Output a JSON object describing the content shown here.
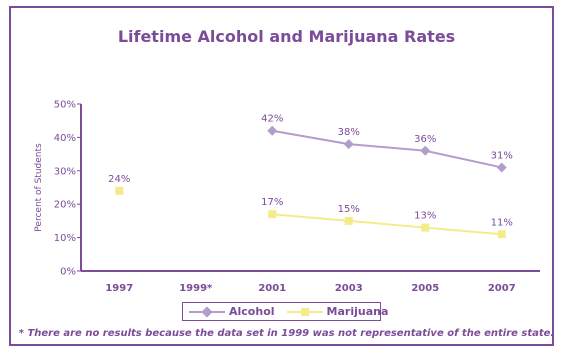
{
  "chart_data": {
    "type": "line",
    "title": "Lifetime Alcohol and Marijuana Rates",
    "ylabel": "Percent of Students",
    "xlabel": "",
    "categories": [
      "1997",
      "1999*",
      "2001",
      "2003",
      "2005",
      "2007"
    ],
    "ylim": [
      0,
      50
    ],
    "yticks": [
      "0%",
      "10%",
      "20%",
      "30%",
      "40%",
      "50%"
    ],
    "grid": false,
    "legend_position": "bottom",
    "series": [
      {
        "name": "Alcohol",
        "color": "#b39dcc",
        "marker": "diamond",
        "values": [
          null,
          null,
          42,
          38,
          36,
          31
        ],
        "labels": [
          null,
          null,
          "42%",
          "38%",
          "36%",
          "31%"
        ]
      },
      {
        "name": "Marijuana",
        "color": "#f4ec8a",
        "marker": "square",
        "values": [
          24,
          null,
          17,
          15,
          13,
          11
        ],
        "labels": [
          "24%",
          null,
          "17%",
          "15%",
          "13%",
          "11%"
        ]
      }
    ],
    "footnote": "* There are no results because the data set in 1999 was not representative of the entire state."
  },
  "colors": {
    "accent": "#7b4c98"
  }
}
